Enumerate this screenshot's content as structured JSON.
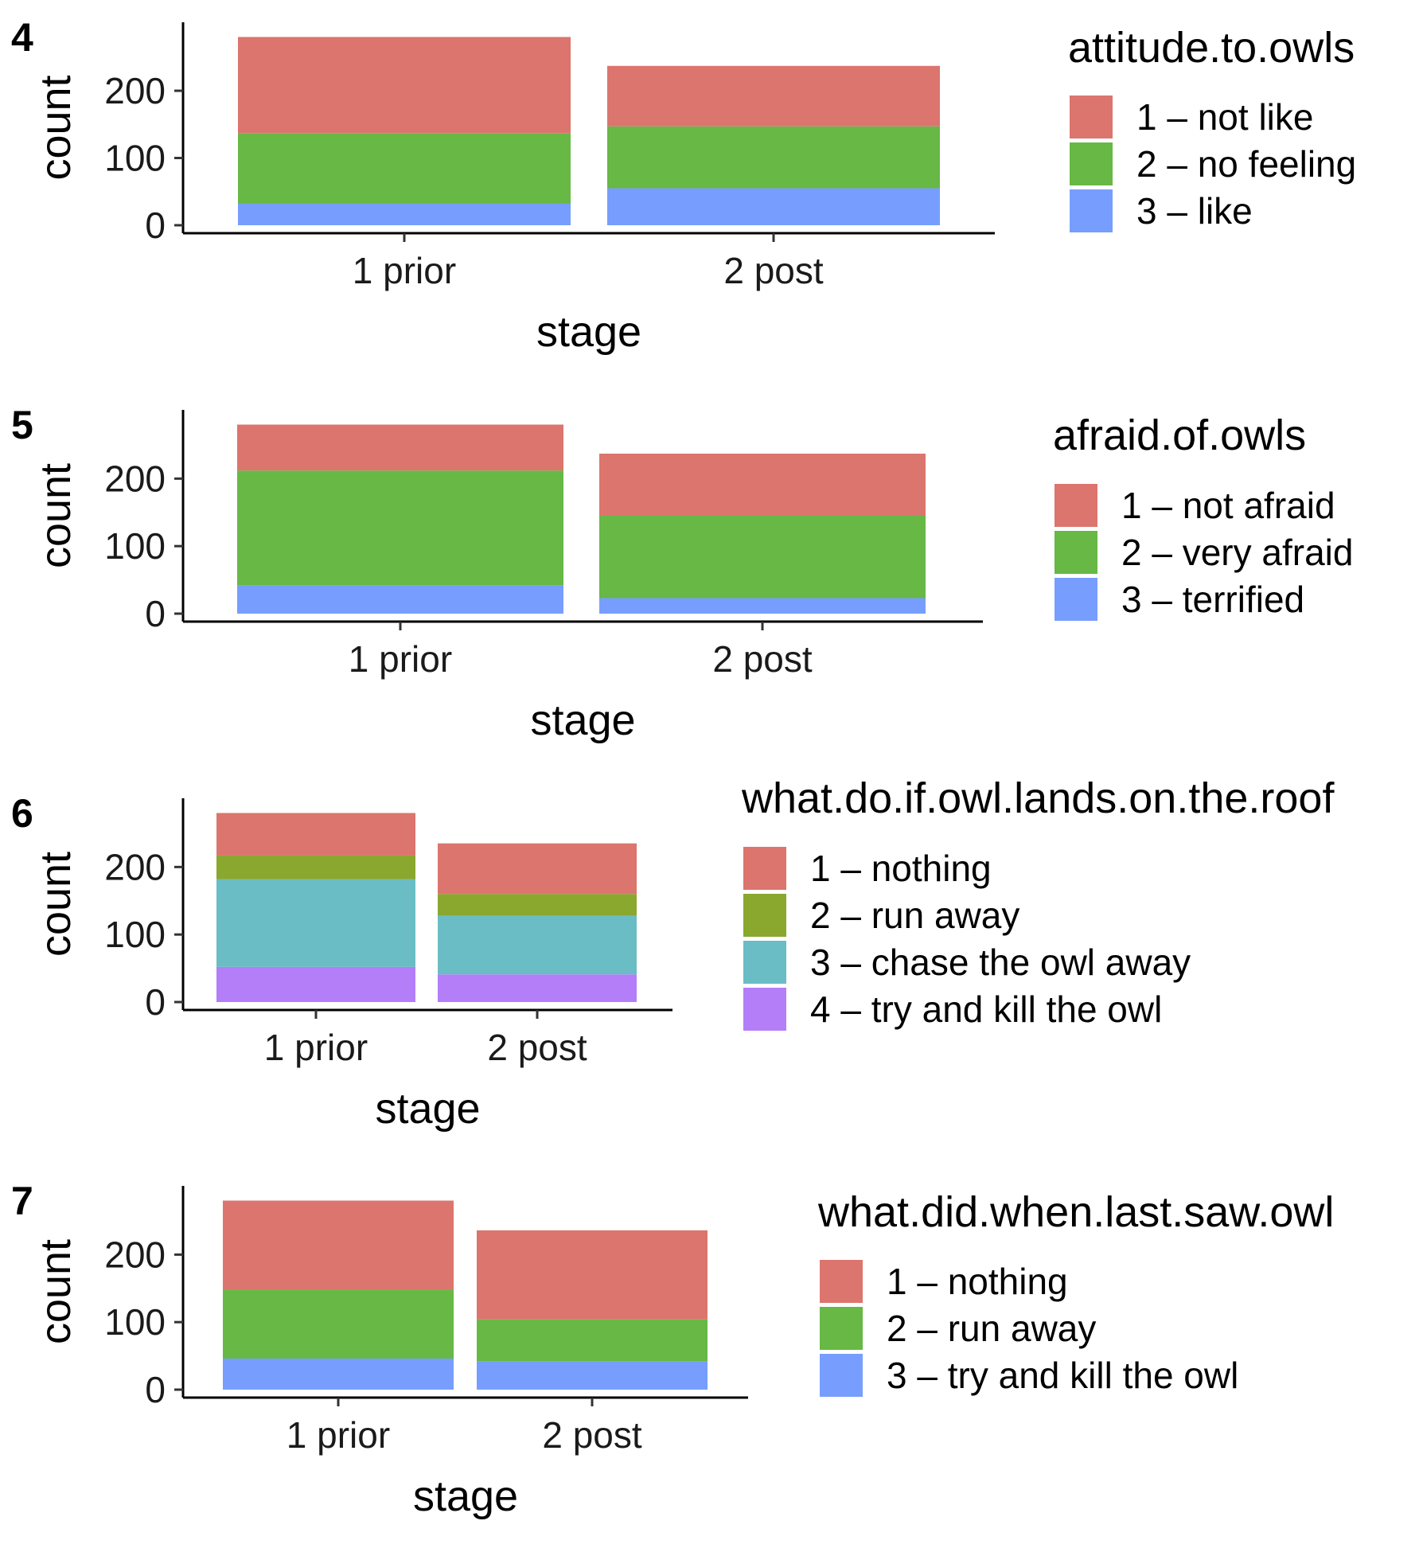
{
  "chart_data": [
    {
      "type": "bar",
      "stacked": true,
      "tag": "4",
      "xlabel": "stage",
      "ylabel": "count",
      "categories": [
        "1 prior",
        "2 post"
      ],
      "yticks": [
        "0",
        "100",
        "200"
      ],
      "ylim": [
        0,
        290
      ],
      "legend_title": "attitude.to.owls",
      "legend_position": "right",
      "series": [
        {
          "name": "1 – not like",
          "color": "#DB756E",
          "values": [
            143,
            90
          ]
        },
        {
          "name": "2 – no feeling",
          "color": "#67B845",
          "values": [
            105,
            92
          ]
        },
        {
          "name": "3 – like",
          "color": "#779EFF",
          "values": [
            32,
            55
          ]
        }
      ]
    },
    {
      "type": "bar",
      "stacked": true,
      "tag": "5",
      "xlabel": "stage",
      "ylabel": "count",
      "categories": [
        "1 prior",
        "2 post"
      ],
      "yticks": [
        "0",
        "100",
        "200"
      ],
      "ylim": [
        0,
        290
      ],
      "legend_title": "afraid.of.owls",
      "legend_position": "right",
      "series": [
        {
          "name": "1 – not afraid",
          "color": "#DB756E",
          "values": [
            68,
            92
          ]
        },
        {
          "name": "2 – very afraid",
          "color": "#67B845",
          "values": [
            170,
            122
          ]
        },
        {
          "name": "3 – terrified",
          "color": "#779EFF",
          "values": [
            42,
            23
          ]
        }
      ]
    },
    {
      "type": "bar",
      "stacked": true,
      "tag": "6",
      "xlabel": "stage",
      "ylabel": "count",
      "categories": [
        "1 prior",
        "2 post"
      ],
      "yticks": [
        "0",
        "100",
        "200"
      ],
      "ylim": [
        0,
        290
      ],
      "legend_title": "what.do.if.owl.lands.on.the.roof",
      "legend_position": "right",
      "series": [
        {
          "name": "1 – nothing",
          "color": "#DB756E",
          "values": [
            63,
            75
          ]
        },
        {
          "name": "2 – run away",
          "color": "#8AA72E",
          "values": [
            35,
            32
          ]
        },
        {
          "name": "3 – chase the owl away",
          "color": "#6ABDC4",
          "values": [
            130,
            87
          ]
        },
        {
          "name": "4 – try and kill the owl",
          "color": "#B37EF8",
          "values": [
            52,
            41
          ]
        }
      ]
    },
    {
      "type": "bar",
      "stacked": true,
      "tag": "7",
      "xlabel": "stage",
      "ylabel": "count",
      "categories": [
        "1 prior",
        "2 post"
      ],
      "yticks": [
        "0",
        "100",
        "200"
      ],
      "ylim": [
        0,
        290
      ],
      "legend_title": "what.did.when.last.saw.owl",
      "legend_position": "right",
      "series": [
        {
          "name": "1 – nothing",
          "color": "#DB756E",
          "values": [
            132,
            132
          ]
        },
        {
          "name": "2 – run away",
          "color": "#67B845",
          "values": [
            102,
            62
          ]
        },
        {
          "name": "3 – try and kill the owl",
          "color": "#779EFF",
          "values": [
            46,
            42
          ]
        }
      ]
    }
  ]
}
